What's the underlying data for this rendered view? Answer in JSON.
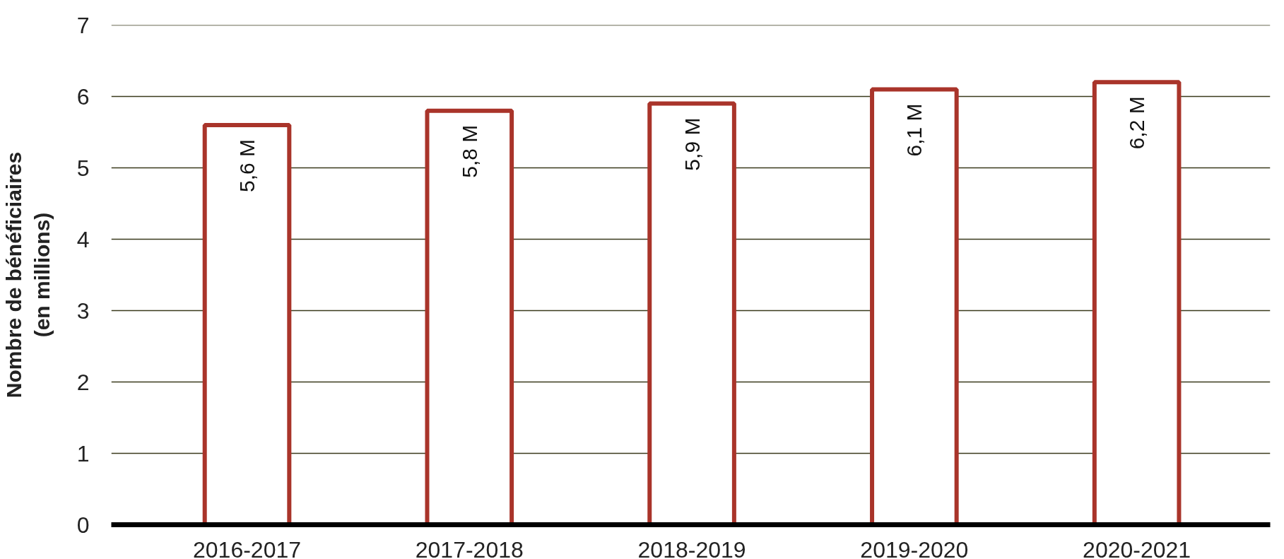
{
  "chart_data": {
    "type": "bar",
    "ylabel": "Nombre de bénéficiaires\n(en millions)",
    "categories": [
      "2016-2017",
      "2017-2018",
      "2018-2019",
      "2019-2020",
      "2020-2021"
    ],
    "values": [
      5.6,
      5.8,
      5.9,
      6.1,
      6.2
    ],
    "value_labels": [
      "5,6 M",
      "5,8 M",
      "5,9 M",
      "6,1 M",
      "6,2 M"
    ],
    "color": "#a9342a",
    "ylim": [
      0,
      7
    ],
    "yticks": [
      0,
      1,
      2,
      3,
      4,
      5,
      6,
      7
    ],
    "grid": "y"
  }
}
